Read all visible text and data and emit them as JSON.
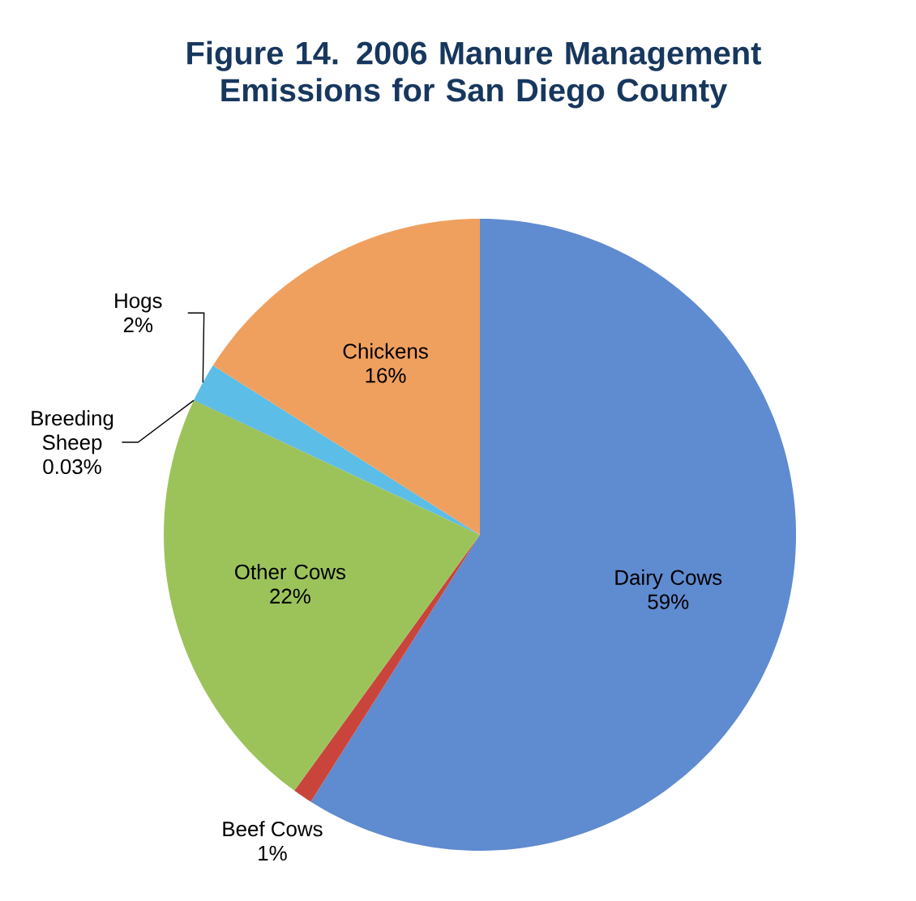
{
  "chart_data": {
    "type": "pie",
    "title": "Figure 14. 2006 Manure Management Emissions for San Diego County",
    "categories": [
      "Dairy Cows",
      "Beef Cows",
      "Other Cows",
      "Breeding Sheep",
      "Hogs",
      "Chickens"
    ],
    "values": [
      59,
      1,
      22,
      0.03,
      2,
      16
    ],
    "value_labels": [
      "59%",
      "1%",
      "22%",
      "0.03%",
      "2%",
      "16%"
    ],
    "colors": [
      "#5f8bd0",
      "#c9453c",
      "#9cc35a",
      "#7a9a3e",
      "#5cbde6",
      "#f0a05e"
    ]
  }
}
